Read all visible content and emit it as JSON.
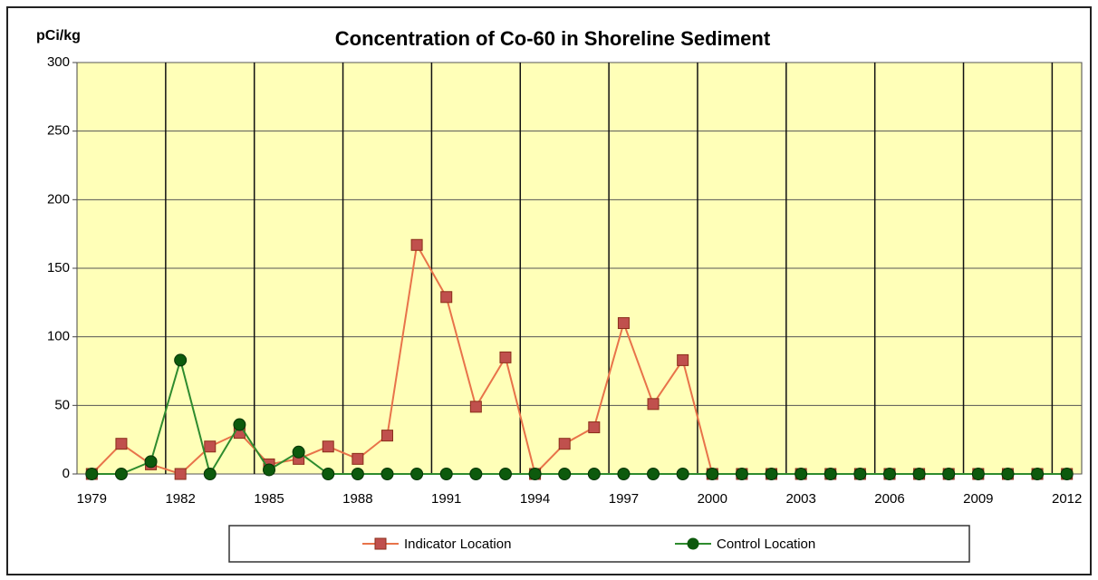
{
  "chart_data": {
    "type": "line",
    "title": "Concentration of Co-60 in Shoreline Sediment",
    "y_label": "pCi/kg",
    "categories": [
      "1979",
      null,
      null,
      "1982",
      null,
      null,
      "1985",
      null,
      null,
      "1988",
      null,
      null,
      "1991",
      null,
      null,
      "1994",
      null,
      null,
      "1997",
      null,
      null,
      "2000",
      null,
      null,
      "2003",
      null,
      null,
      "2006",
      null,
      null,
      "2009",
      null,
      null,
      "2012"
    ],
    "series": [
      {
        "name": "Indicator Location",
        "color": "#c0504d",
        "line_color": "#e8734a",
        "values": [
          0,
          22,
          7,
          0,
          20,
          30,
          7,
          11,
          20,
          11,
          28,
          167,
          129,
          49,
          85,
          0,
          22,
          34,
          110,
          51,
          83,
          0,
          0,
          0,
          0,
          0,
          0,
          0,
          0,
          0,
          0,
          0,
          0,
          0
        ]
      },
      {
        "name": "Control Location",
        "color": "#0d5a0d",
        "line_color": "#2e8b2e",
        "values": [
          0,
          0,
          9,
          83,
          0,
          36,
          3,
          16,
          0,
          0,
          0,
          0,
          0,
          0,
          0,
          0,
          0,
          0,
          0,
          0,
          0,
          0,
          0,
          0,
          0,
          0,
          0,
          0,
          0,
          0,
          0,
          0,
          0,
          0
        ]
      }
    ],
    "ylim": [
      0,
      300
    ],
    "yticks": [
      0,
      50,
      100,
      150,
      200,
      250,
      300
    ],
    "grid": true,
    "background": "#ffffb8",
    "legend": "bottom"
  }
}
